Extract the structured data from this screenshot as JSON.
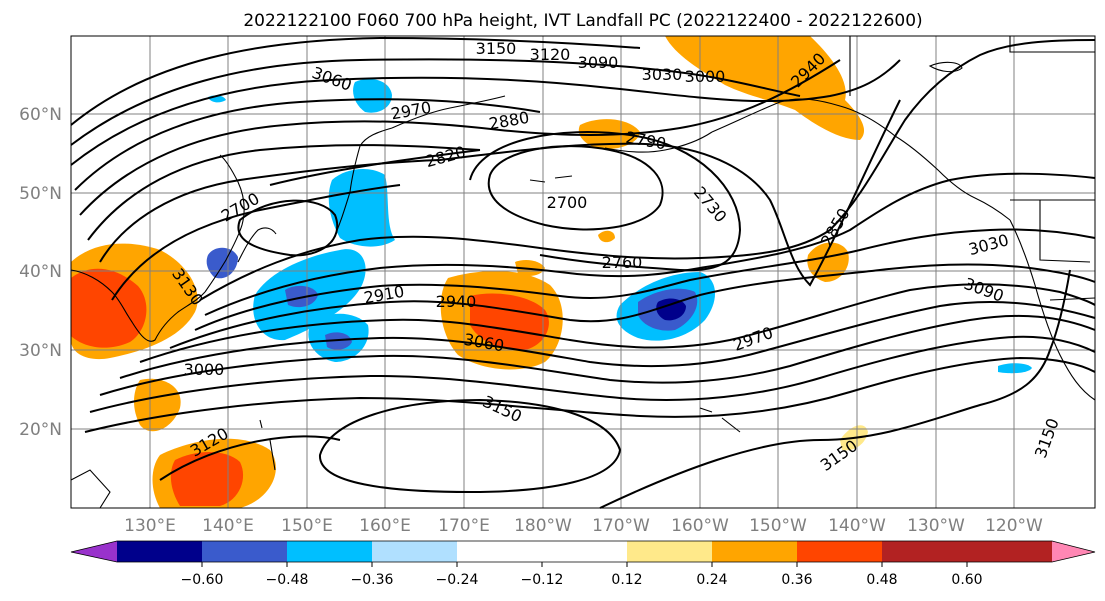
{
  "title": "2022122100 F060 700 hPa height, IVT Landfall PC (2022122400 - 2022122600)",
  "map": {
    "lat_labels": [
      "60°N",
      "50°N",
      "40°N",
      "30°N",
      "20°N"
    ],
    "lon_labels": [
      "130°E",
      "140°E",
      "150°E",
      "160°E",
      "170°E",
      "180°W",
      "170°W",
      "160°W",
      "150°W",
      "140°W",
      "130°W",
      "120°W"
    ],
    "contour_labels": [
      "3150",
      "3120",
      "3090",
      "3030",
      "3000",
      "2940",
      "3060",
      "2970",
      "2880",
      "2790",
      "2820",
      "2700",
      "2730",
      "2760",
      "2850",
      "3030",
      "3090",
      "2700",
      "3130",
      "2910",
      "2940",
      "3060",
      "2970",
      "3000",
      "3150",
      "3120",
      "3150",
      "3150"
    ]
  },
  "colorbar": {
    "ticks": [
      "−0.60",
      "−0.48",
      "−0.36",
      "−0.24",
      "−0.12",
      "0.12",
      "0.24",
      "0.36",
      "0.48",
      "0.60"
    ],
    "colors": [
      "#9932cc",
      "#00008b",
      "#3a5bcc",
      "#00bfff",
      "#b0e0ff",
      "#ffffff",
      "#ffe98a",
      "#ffa500",
      "#ff4500",
      "#b22222",
      "#ff87b4"
    ]
  }
}
